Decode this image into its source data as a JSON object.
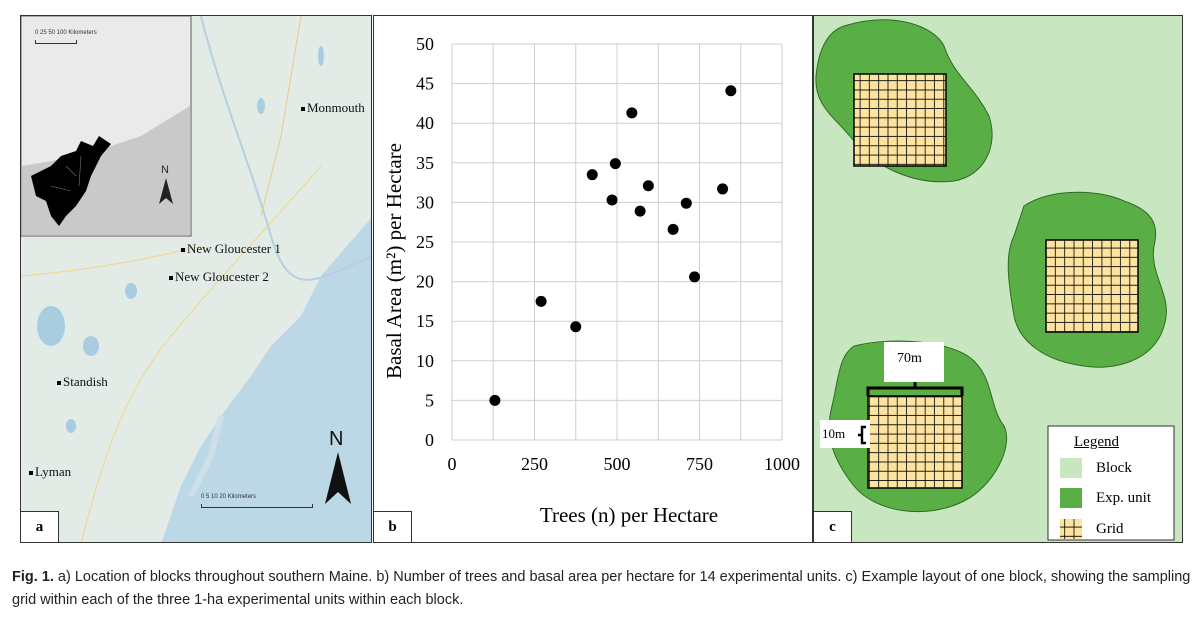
{
  "panel_a": {
    "letter": "a",
    "towns": [
      "Monmouth",
      "New Gloucester 1",
      "New Gloucester 2",
      "Standish",
      "Lyman"
    ],
    "inset_scale": "0   25  50      100 Kilometers",
    "main_scale": "0     5     10         20 Kilometers",
    "north": "N",
    "inset_north": "N"
  },
  "panel_b": {
    "letter": "b"
  },
  "panel_c": {
    "letter": "c",
    "dim_70": "70m",
    "dim_10": "10m",
    "legend": {
      "title": "Legend",
      "items": [
        "Block",
        "Exp. unit",
        "Grid"
      ]
    },
    "colors": {
      "block": "#c8e6bf",
      "exp_unit": "#5aae46",
      "grid": "#fce3a0"
    }
  },
  "caption": {
    "label": "Fig. 1.",
    "text": " a) Location of blocks throughout southern Maine. b) Number of trees and basal area per hectare for 14 experimental units. c) Example layout of one block, showing the sampling grid within each of the three 1-ha experimental units within each block."
  },
  "chart_data": {
    "type": "scatter",
    "xlabel": "Trees (n) per Hectare",
    "ylabel": "Basal Area (m²) per Hectare",
    "xlim": [
      0,
      1000
    ],
    "ylim": [
      0,
      50
    ],
    "xticks": [
      "0",
      "250",
      "500",
      "750",
      "1000"
    ],
    "yticks": [
      "0",
      "5",
      "10",
      "15",
      "20",
      "25",
      "30",
      "35",
      "40",
      "45",
      "50"
    ],
    "grid": true,
    "points": [
      {
        "x": 130,
        "y": 5
      },
      {
        "x": 270,
        "y": 17.5
      },
      {
        "x": 375,
        "y": 14.3
      },
      {
        "x": 425,
        "y": 33.5
      },
      {
        "x": 485,
        "y": 30.3
      },
      {
        "x": 495,
        "y": 34.9
      },
      {
        "x": 545,
        "y": 41.3
      },
      {
        "x": 570,
        "y": 28.9
      },
      {
        "x": 595,
        "y": 32.1
      },
      {
        "x": 670,
        "y": 26.6
      },
      {
        "x": 710,
        "y": 29.9
      },
      {
        "x": 735,
        "y": 20.6
      },
      {
        "x": 820,
        "y": 31.7
      },
      {
        "x": 845,
        "y": 44.1
      }
    ]
  }
}
